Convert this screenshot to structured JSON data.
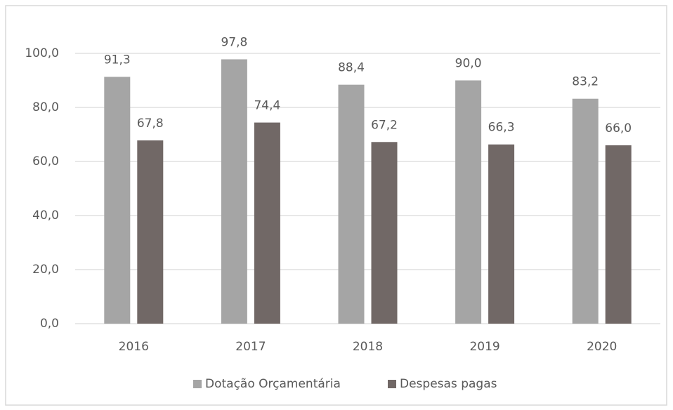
{
  "chart_data": {
    "type": "bar",
    "categories": [
      "2016",
      "2017",
      "2018",
      "2019",
      "2020"
    ],
    "series": [
      {
        "name": "Dotação Orçamentária",
        "color": "#a5a5a5",
        "values": [
          91.3,
          97.8,
          88.4,
          90.0,
          83.2
        ],
        "value_labels": [
          "91,3",
          "97,8",
          "88,4",
          "90,0",
          "83,2"
        ]
      },
      {
        "name": "Despesas pagas",
        "color": "#716866",
        "values": [
          67.8,
          74.4,
          67.2,
          66.3,
          66.0
        ],
        "value_labels": [
          "67,8",
          "74,4",
          "67,2",
          "66,3",
          "66,0"
        ]
      }
    ],
    "ylim": [
      0,
      100
    ],
    "yticks": [
      {
        "value": 0,
        "label": "0,0"
      },
      {
        "value": 20,
        "label": "20,0"
      },
      {
        "value": 40,
        "label": "40,0"
      },
      {
        "value": 60,
        "label": "60,0"
      },
      {
        "value": 80,
        "label": "80,0"
      },
      {
        "value": 100,
        "label": "100,0"
      }
    ],
    "grid": true,
    "legend": "bottom"
  }
}
